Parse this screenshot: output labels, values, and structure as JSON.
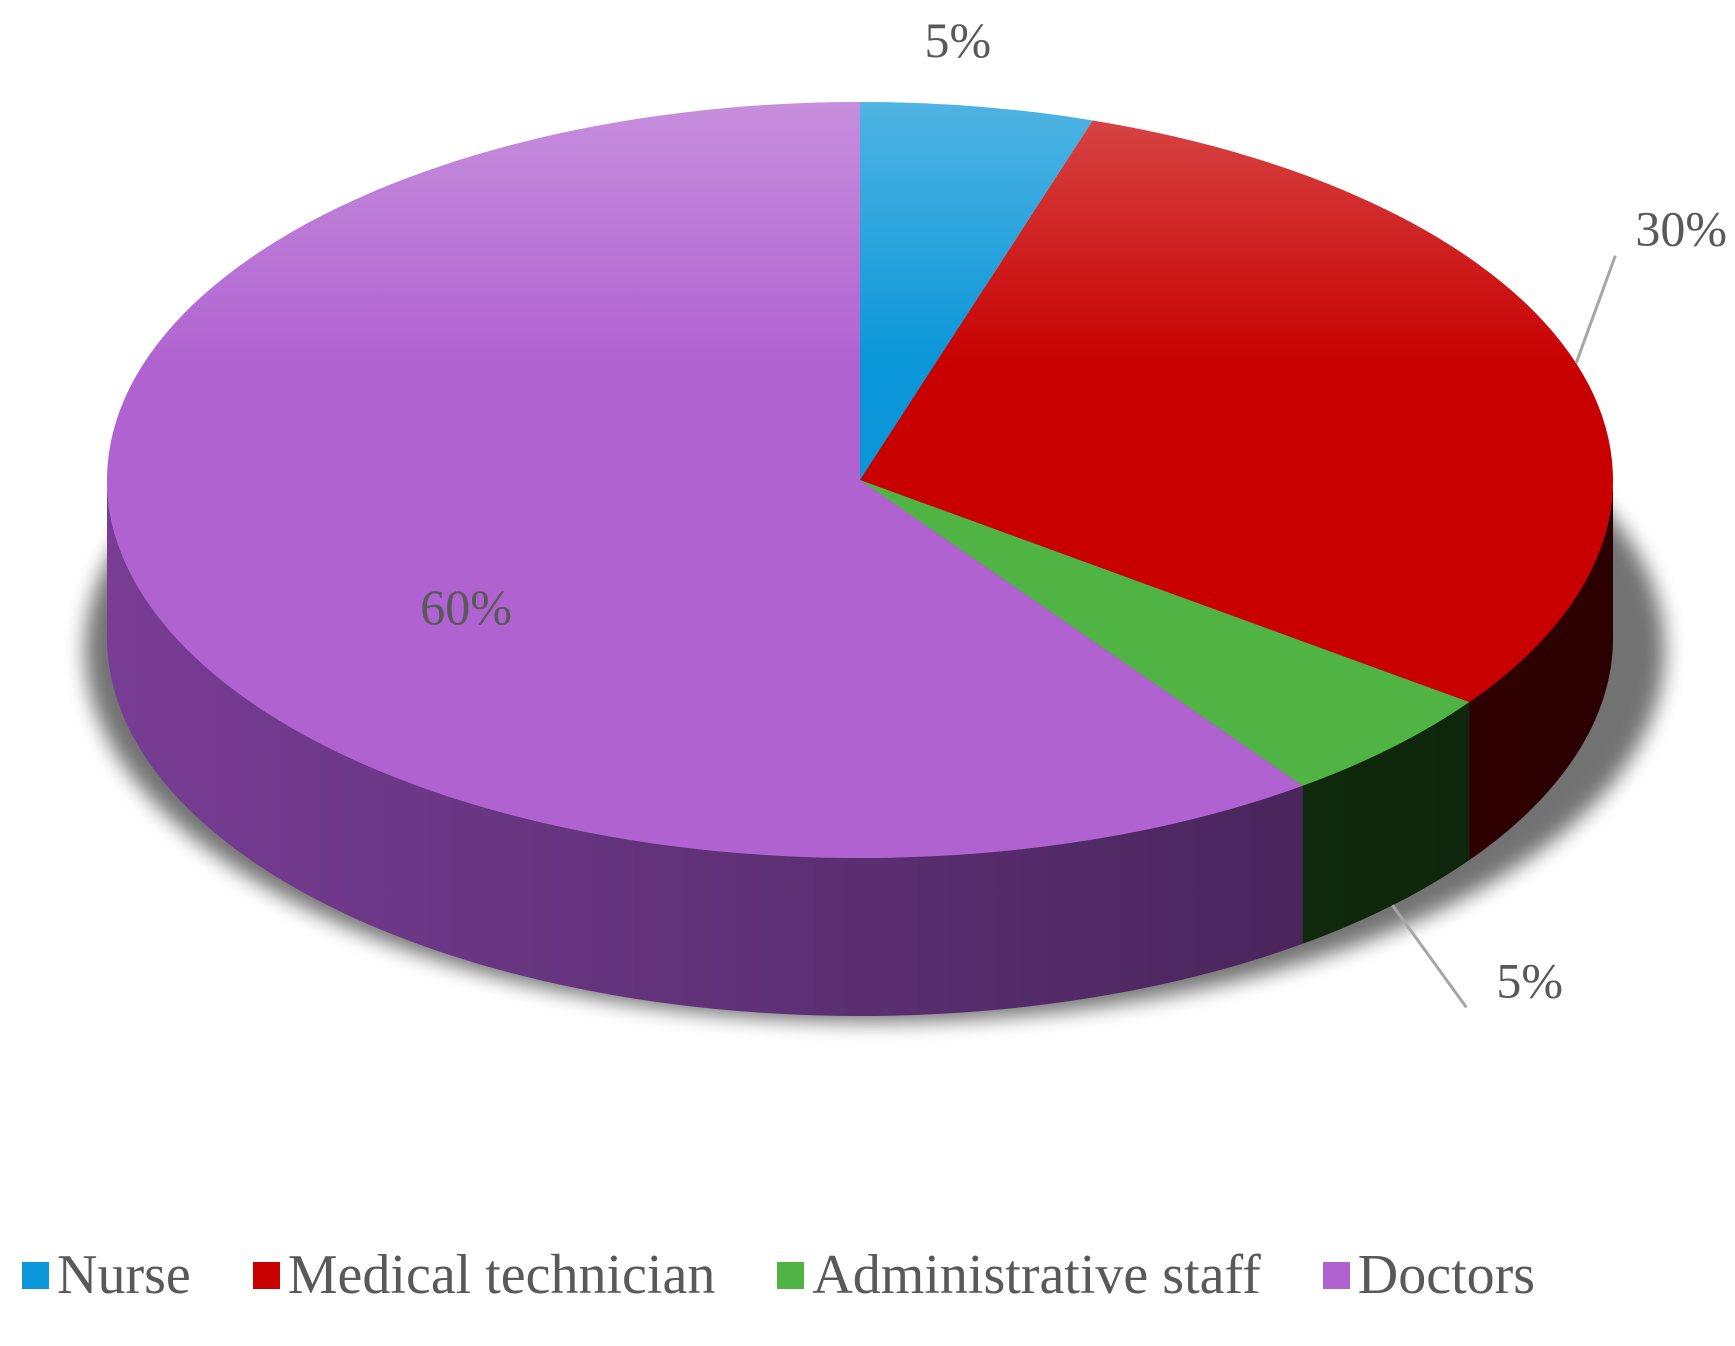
{
  "chart_data": {
    "type": "pie",
    "style": "3d",
    "title": "",
    "categories": [
      "Nurse",
      "Medical technician",
      "Administrative staff",
      "Doctors"
    ],
    "values": [
      5,
      30,
      5,
      60
    ],
    "value_labels": [
      "5%",
      "30%",
      "5%",
      "60%"
    ],
    "colors": [
      "#0a96d8",
      "#c80000",
      "#50b445",
      "#b062d0"
    ],
    "side_colors": [
      "#06679a",
      "#560000",
      "#1a4514",
      "#7a3e98"
    ],
    "legend_position": "bottom"
  }
}
